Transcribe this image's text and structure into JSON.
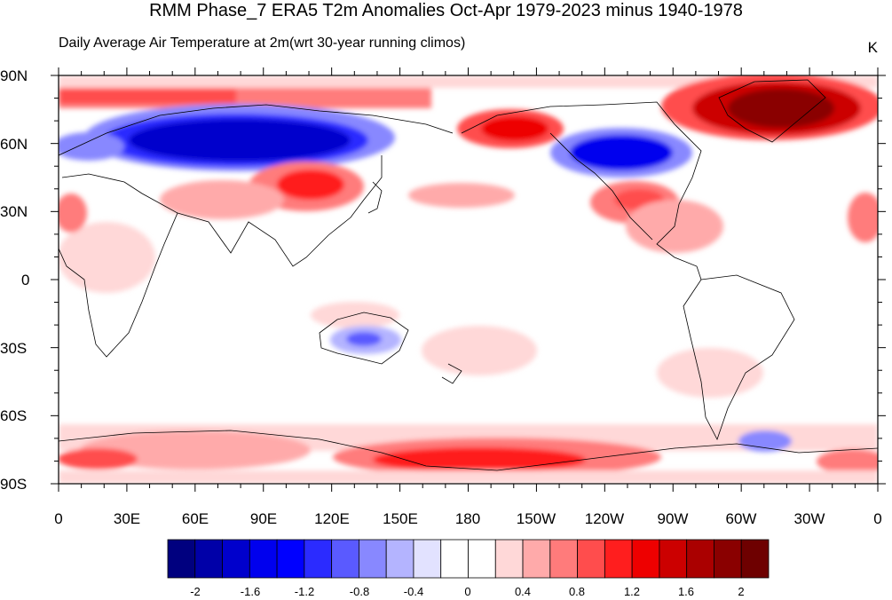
{
  "title": "RMM Phase_7 ERA5 T2m Anomalies Oct-Apr 1979-2023 minus 1940-1978",
  "subtitle_left": "Daily Average Air Temperature at 2m(wrt 30-year running climos)",
  "units": "K",
  "map": {
    "lat_labels": [
      "90N",
      "60N",
      "30N",
      "0",
      "30S",
      "60S",
      "90S"
    ],
    "lon_labels": [
      "0",
      "30E",
      "60E",
      "90E",
      "120E",
      "150E",
      "180",
      "150W",
      "120W",
      "90W",
      "60W",
      "30W",
      "0"
    ]
  },
  "colorbar": {
    "colors": [
      "#00007f",
      "#0000a8",
      "#0000cc",
      "#0000ee",
      "#0000ff",
      "#2b2bff",
      "#5a5aff",
      "#8888ff",
      "#b4b4ff",
      "#e2e2ff",
      "#ffffff",
      "#ffffff",
      "#ffd8d8",
      "#ffaaaa",
      "#ff7b7b",
      "#ff4d4d",
      "#ff1e1e",
      "#ee0000",
      "#cc0000",
      "#aa0000",
      "#8a0000",
      "#6e0000"
    ],
    "labels": [
      "-2",
      "-1.6",
      "-1.2",
      "-0.8",
      "-0.4",
      "0",
      "0.4",
      "0.8",
      "1.2",
      "1.6",
      "2"
    ]
  },
  "colors": {
    "strong_cold": "#0000cc",
    "cold": "#5a5aff",
    "light_cold": "#e2e2ff",
    "light_warm": "#ffd8d8",
    "warm": "#ff4d4d",
    "strong_warm": "#cc0000",
    "extreme_warm": "#8a0000"
  }
}
